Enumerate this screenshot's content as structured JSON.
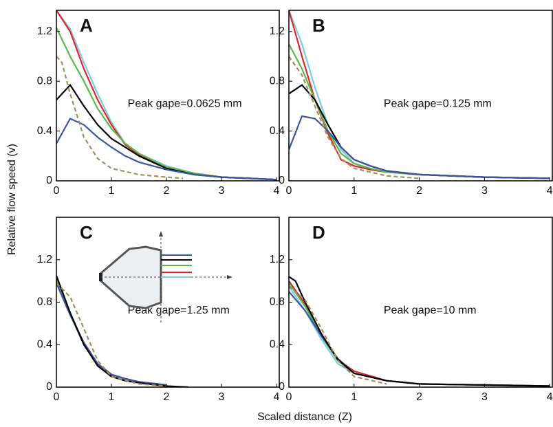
{
  "ylabel": "Relative flow speed (v)",
  "xlabel": "Scaled distance (Z)",
  "chart_data": [
    {
      "type": "line",
      "title": "A",
      "annotation": "Peak gape=0.0625 mm",
      "xlim": [
        0,
        4.05
      ],
      "ylim": [
        0,
        1.37
      ],
      "xticks": [
        0,
        1,
        2,
        3,
        4
      ],
      "yticks": [
        0,
        0.4,
        0.8,
        1.2
      ],
      "series": [
        {
          "color": "#7ecbe4",
          "x": [
            0,
            0.25,
            0.5,
            0.75,
            1,
            1.25,
            1.5,
            2,
            2.5,
            3,
            3.5,
            4
          ],
          "values": [
            1.37,
            1.22,
            0.95,
            0.7,
            0.47,
            0.3,
            0.22,
            0.12,
            0.06,
            0.03,
            0.02,
            0.01
          ]
        },
        {
          "color": "#e0252b",
          "x": [
            0,
            0.25,
            0.5,
            0.75,
            1,
            1.25,
            1.5,
            2,
            2.5,
            3,
            3.5,
            4
          ],
          "values": [
            1.37,
            1.2,
            0.9,
            0.65,
            0.45,
            0.29,
            0.21,
            0.11,
            0.06,
            0.03,
            0.02,
            0.01
          ]
        },
        {
          "color": "#5ab94a",
          "x": [
            0,
            0.25,
            0.5,
            0.75,
            1,
            1.25,
            1.5,
            2,
            2.5,
            3,
            3.5,
            4
          ],
          "values": [
            1.23,
            1.0,
            0.8,
            0.58,
            0.42,
            0.3,
            0.22,
            0.11,
            0.06,
            0.03,
            0.02,
            0.01
          ]
        },
        {
          "color": "#000000",
          "x": [
            0,
            0.25,
            0.5,
            0.75,
            1,
            1.25,
            1.5,
            2,
            2.5,
            3,
            3.5,
            4
          ],
          "values": [
            0.65,
            0.77,
            0.6,
            0.45,
            0.34,
            0.27,
            0.2,
            0.1,
            0.05,
            0.03,
            0.02,
            0.01
          ]
        },
        {
          "color": "#3a56a5",
          "x": [
            0,
            0.25,
            0.5,
            0.75,
            1,
            1.25,
            1.5,
            2,
            2.5,
            3,
            3.5,
            4
          ],
          "values": [
            0.3,
            0.5,
            0.45,
            0.35,
            0.27,
            0.2,
            0.15,
            0.09,
            0.05,
            0.03,
            0.02,
            0.01
          ]
        },
        {
          "color": "#a88c5a",
          "dashed": true,
          "x": [
            0,
            0.1,
            0.25,
            0.5,
            0.75,
            1,
            1.5,
            2,
            2.3
          ],
          "values": [
            1.0,
            0.95,
            0.7,
            0.35,
            0.18,
            0.1,
            0.05,
            0.03,
            0.02
          ]
        }
      ]
    },
    {
      "type": "line",
      "title": "B",
      "annotation": "Peak gape=0.125 mm",
      "xlim": [
        0,
        4.04
      ],
      "ylim": [
        0,
        1.37
      ],
      "xticks": [
        0,
        1,
        2,
        3,
        4
      ],
      "yticks": [
        0,
        0.4,
        0.8,
        1.2
      ],
      "series": [
        {
          "color": "#7ecbe4",
          "x": [
            0,
            0.2,
            0.4,
            0.6,
            0.8,
            1,
            1.25,
            1.5,
            2,
            3,
            4
          ],
          "values": [
            1.37,
            1.1,
            0.75,
            0.45,
            0.25,
            0.14,
            0.09,
            0.07,
            0.05,
            0.03,
            0.02
          ]
        },
        {
          "color": "#e0252b",
          "x": [
            0,
            0.2,
            0.4,
            0.6,
            0.8,
            1,
            1.25,
            1.5,
            2,
            3,
            4
          ],
          "values": [
            1.37,
            1.0,
            0.65,
            0.38,
            0.17,
            0.12,
            0.09,
            0.07,
            0.05,
            0.03,
            0.02
          ]
        },
        {
          "color": "#5ab94a",
          "x": [
            0,
            0.2,
            0.4,
            0.6,
            0.8,
            1,
            1.25,
            1.5,
            2,
            3,
            4
          ],
          "values": [
            1.1,
            0.9,
            0.65,
            0.4,
            0.22,
            0.14,
            0.1,
            0.07,
            0.05,
            0.03,
            0.02
          ]
        },
        {
          "color": "#000000",
          "x": [
            0,
            0.2,
            0.4,
            0.6,
            0.8,
            1,
            1.25,
            1.5,
            2,
            3,
            4
          ],
          "values": [
            0.7,
            0.77,
            0.65,
            0.45,
            0.27,
            0.17,
            0.12,
            0.08,
            0.05,
            0.03,
            0.02
          ]
        },
        {
          "color": "#3a56a5",
          "x": [
            0,
            0.2,
            0.4,
            0.6,
            0.8,
            1,
            1.25,
            1.5,
            2,
            3,
            4
          ],
          "values": [
            0.25,
            0.52,
            0.5,
            0.4,
            0.27,
            0.17,
            0.12,
            0.08,
            0.05,
            0.03,
            0.02
          ]
        },
        {
          "color": "#a88c5a",
          "dashed": true,
          "x": [
            0,
            0.2,
            0.4,
            0.6,
            0.8,
            1,
            1.5,
            2
          ],
          "values": [
            1.0,
            0.85,
            0.6,
            0.35,
            0.18,
            0.1,
            0.04,
            0.02
          ]
        }
      ]
    },
    {
      "type": "line",
      "title": "C",
      "annotation": "Peak gape=1.25 mm",
      "xlim": [
        0,
        4.05
      ],
      "ylim": [
        0,
        1.6
      ],
      "xticks": [
        0,
        1,
        2,
        3,
        4
      ],
      "yticks": [
        0,
        0.4,
        0.8,
        1.2
      ],
      "series": [
        {
          "color": "#7ecbe4",
          "x": [
            0,
            0.25,
            0.5,
            0.75,
            1,
            1.25,
            1.5,
            2
          ],
          "values": [
            1.0,
            0.68,
            0.4,
            0.21,
            0.11,
            0.07,
            0.05,
            0.02
          ]
        },
        {
          "color": "#e0252b",
          "x": [
            0,
            0.25,
            0.5,
            0.75,
            1,
            1.25,
            1.5,
            2
          ],
          "values": [
            1.02,
            0.69,
            0.4,
            0.21,
            0.11,
            0.07,
            0.05,
            0.02
          ]
        },
        {
          "color": "#5ab94a",
          "x": [
            0,
            0.25,
            0.5,
            0.75,
            1,
            1.25,
            1.5,
            2
          ],
          "values": [
            1.03,
            0.7,
            0.41,
            0.22,
            0.12,
            0.07,
            0.05,
            0.02
          ]
        },
        {
          "color": "#3a56a5",
          "x": [
            0,
            0.25,
            0.5,
            0.75,
            1,
            1.25,
            1.5,
            2
          ],
          "values": [
            0.98,
            0.68,
            0.42,
            0.22,
            0.12,
            0.08,
            0.05,
            0.02
          ]
        },
        {
          "color": "#000000",
          "x": [
            0,
            0.25,
            0.5,
            0.75,
            1,
            1.25,
            1.5,
            2,
            2.4
          ],
          "values": [
            1.05,
            0.7,
            0.4,
            0.2,
            0.1,
            0.06,
            0.04,
            0.01,
            0
          ]
        },
        {
          "color": "#a88c5a",
          "dashed": true,
          "x": [
            0,
            0.25,
            0.5,
            0.75,
            1,
            1.5,
            2
          ],
          "values": [
            0.98,
            0.85,
            0.55,
            0.25,
            0.1,
            0.03,
            0.01
          ]
        }
      ]
    },
    {
      "type": "line",
      "title": "D",
      "annotation": "Peak gape=10 mm",
      "xlim": [
        0,
        4.04
      ],
      "ylim": [
        0,
        1.6
      ],
      "xticks": [
        0,
        1,
        2,
        3,
        4
      ],
      "yticks": [
        0,
        0.4,
        0.8,
        1.2
      ],
      "series": [
        {
          "color": "#7ecbe4",
          "x": [
            0,
            0.25,
            0.5,
            0.75,
            1,
            1.5,
            2,
            3,
            4
          ],
          "values": [
            0.95,
            0.72,
            0.45,
            0.22,
            0.13,
            0.06,
            0.03,
            0.02,
            0.01
          ]
        },
        {
          "color": "#e0252b",
          "x": [
            0,
            0.25,
            0.5,
            0.75,
            1,
            1.5,
            2,
            3,
            4
          ],
          "values": [
            1.0,
            0.78,
            0.5,
            0.26,
            0.15,
            0.06,
            0.03,
            0.02,
            0.01
          ]
        },
        {
          "color": "#5ab94a",
          "x": [
            0,
            0.25,
            0.5,
            0.75,
            1,
            1.5,
            2,
            3,
            4
          ],
          "values": [
            0.98,
            0.76,
            0.48,
            0.25,
            0.13,
            0.06,
            0.03,
            0.02,
            0.01
          ]
        },
        {
          "color": "#3a56a5",
          "x": [
            0,
            0.25,
            0.5,
            0.75,
            1,
            1.5,
            2,
            3,
            4
          ],
          "values": [
            0.9,
            0.72,
            0.48,
            0.27,
            0.13,
            0.06,
            0.03,
            0.02,
            0.01
          ]
        },
        {
          "color": "#000000",
          "x": [
            0,
            0.1,
            0.25,
            0.5,
            0.75,
            1,
            1.5,
            2,
            3,
            4
          ],
          "values": [
            1.04,
            1.0,
            0.8,
            0.5,
            0.26,
            0.13,
            0.06,
            0.03,
            0.02,
            0.01
          ]
        },
        {
          "color": "#a88c5a",
          "dashed": true,
          "x": [
            0,
            0.25,
            0.5,
            0.75,
            1,
            1.5
          ],
          "values": [
            0.95,
            0.82,
            0.55,
            0.25,
            0.1,
            0.03
          ]
        }
      ]
    }
  ]
}
